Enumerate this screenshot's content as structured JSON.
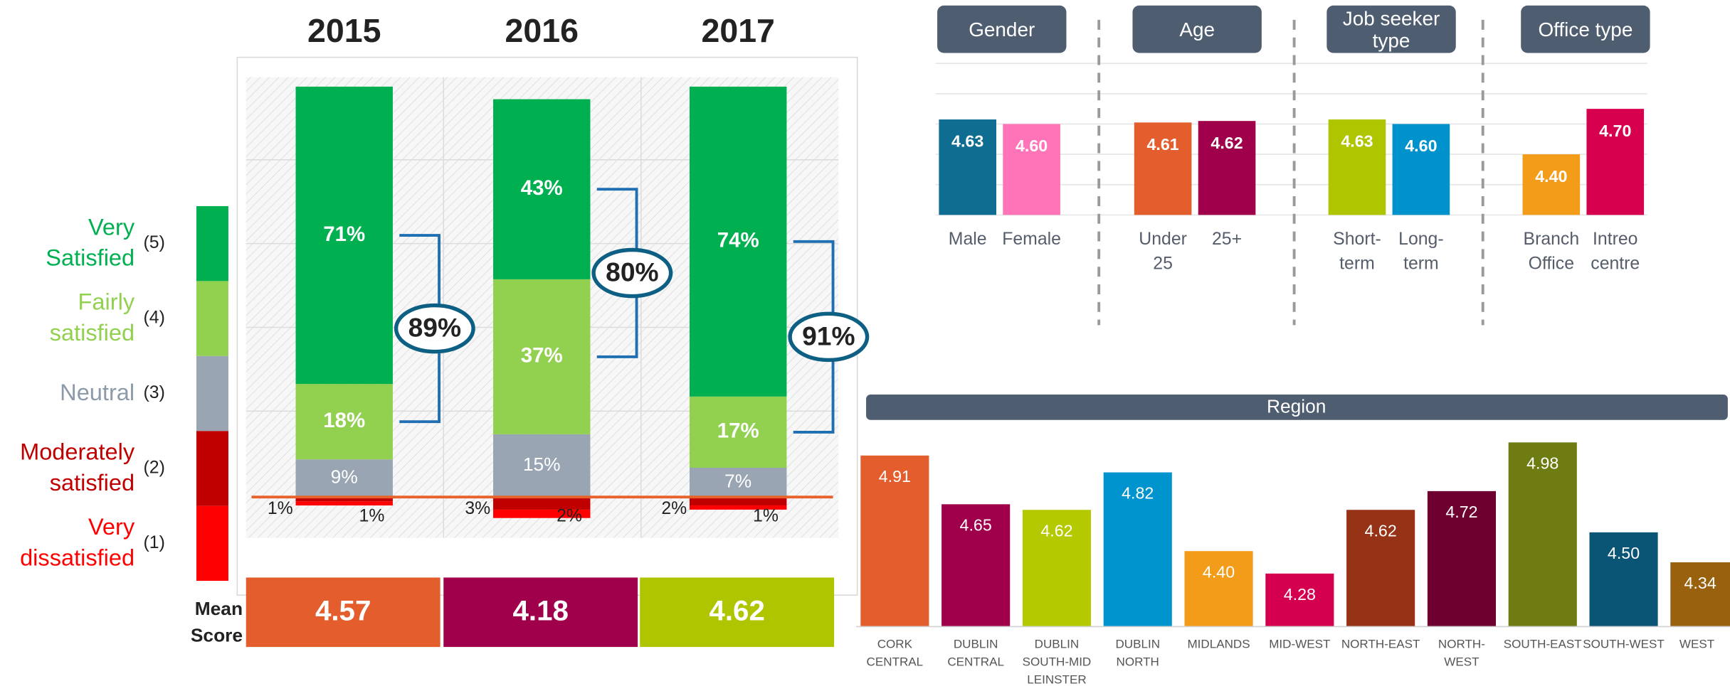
{
  "chart_data": [
    {
      "type": "stacked-bar",
      "categories": [
        "2015",
        "2016",
        "2017"
      ],
      "series": [
        {
          "name": "Very dissatisfied",
          "code": "(1)",
          "color": "#ff0000",
          "values": [
            1,
            2,
            1
          ],
          "value_labels": [
            "1%",
            "2%",
            "1%"
          ]
        },
        {
          "name": "Moderately satisfied",
          "code": "(2)",
          "color": "#c00000",
          "values": [
            1,
            3,
            2
          ],
          "value_labels": [
            "1%",
            "3%",
            "2%"
          ]
        },
        {
          "name": "Neutral",
          "code": "(3)",
          "color": "#9aa5b4",
          "values": [
            9,
            15,
            7
          ],
          "value_labels": [
            "9%",
            "15%",
            "7%"
          ]
        },
        {
          "name": "Fairly satisfied",
          "code": "(4)",
          "color": "#92d050",
          "values": [
            18,
            37,
            17
          ],
          "value_labels": [
            "18%",
            "37%",
            "17%"
          ]
        },
        {
          "name": "Very Satisfied",
          "code": "(5)",
          "color": "#00b050",
          "values": [
            71,
            43,
            74
          ],
          "value_labels": [
            "71%",
            "43%",
            "74%"
          ]
        }
      ],
      "satisfied_total": {
        "values": [
          89,
          80,
          91
        ],
        "value_labels": [
          "89%",
          "80%",
          "91%"
        ]
      },
      "mean_score": {
        "label": "Mean Score",
        "values": [
          4.57,
          4.18,
          4.62
        ],
        "colors": [
          "#e35e2c",
          "#a0004b",
          "#aec500"
        ]
      }
    },
    {
      "type": "grouped-bar",
      "ylim": [
        4,
        5
      ],
      "groups": [
        {
          "name": "Gender",
          "categories": [
            "Male",
            "Female"
          ],
          "values": [
            4.63,
            4.6
          ],
          "value_labels": [
            "4.63",
            "4.60"
          ],
          "colors": [
            "#0e6d91",
            "#ff73b8"
          ]
        },
        {
          "name": "Age",
          "categories": [
            "Under 25",
            "25+"
          ],
          "values": [
            4.61,
            4.62
          ],
          "value_labels": [
            "4.61",
            "4.62"
          ],
          "colors": [
            "#e35e2c",
            "#a0004b"
          ]
        },
        {
          "name": "Job seeker type",
          "categories": [
            "Short-term",
            "Long-term"
          ],
          "values": [
            4.63,
            4.6
          ],
          "value_labels": [
            "4.63",
            "4.60"
          ],
          "colors": [
            "#aec500",
            "#0092cc"
          ]
        },
        {
          "name": "Office type",
          "categories": [
            "Branch Office",
            "Intreo centre"
          ],
          "values": [
            4.4,
            4.7
          ],
          "value_labels": [
            "4.40",
            "4.70"
          ],
          "colors": [
            "#f39c1a",
            "#d6004f"
          ]
        }
      ]
    },
    {
      "type": "bar",
      "title": "Region",
      "ylim": [
        4,
        5
      ],
      "categories": [
        "CORK CENTRAL",
        "DUBLIN CENTRAL",
        "DUBLIN SOUTH-MID LEINSTER",
        "DUBLIN NORTH",
        "MIDLANDS",
        "MID-WEST",
        "NORTH-EAST",
        "NORTH-WEST",
        "SOUTH-EAST",
        "SOUTH-WEST",
        "WEST"
      ],
      "values": [
        4.91,
        4.65,
        4.62,
        4.82,
        4.4,
        4.28,
        4.62,
        4.72,
        4.98,
        4.5,
        4.34
      ],
      "value_labels": [
        "4.91",
        "4.65",
        "4.62",
        "4.82",
        "4.40",
        "4.28",
        "4.62",
        "4.72",
        "4.98",
        "4.50",
        "4.34"
      ],
      "colors": [
        "#e35e2c",
        "#a0004b",
        "#b5c900",
        "#0094cf",
        "#f39c1a",
        "#d4004f",
        "#963216",
        "#6e0030",
        "#6f7c12",
        "#0a5575",
        "#99600e"
      ]
    }
  ]
}
